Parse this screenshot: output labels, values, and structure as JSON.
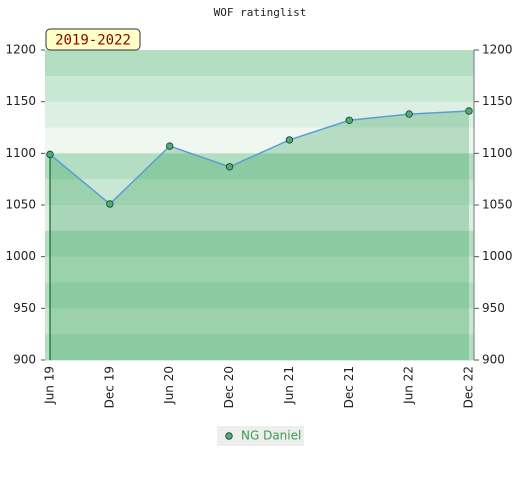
{
  "chart_data": {
    "type": "area",
    "title": "WOF ratinglist",
    "annotation": "2019-2022",
    "categories": [
      "Jun 19",
      "Dec 19",
      "Jun 20",
      "Dec 20",
      "Jun 21",
      "Dec 21",
      "Jun 22",
      "Dec 22"
    ],
    "series": [
      {
        "name": "NG Daniel",
        "color": "#5a9fd4",
        "marker_color": "#4caf6a",
        "values": [
          1099,
          1051,
          1107,
          1087,
          1113,
          1132,
          1138,
          1141
        ]
      }
    ],
    "ylim": [
      900,
      1200
    ],
    "yticks": [
      900,
      950,
      1000,
      1050,
      1100,
      1150,
      1200
    ],
    "y2lim": [
      900,
      1200
    ],
    "y2ticks": [
      900,
      950,
      1000,
      1050,
      1100,
      1150,
      1200
    ]
  }
}
